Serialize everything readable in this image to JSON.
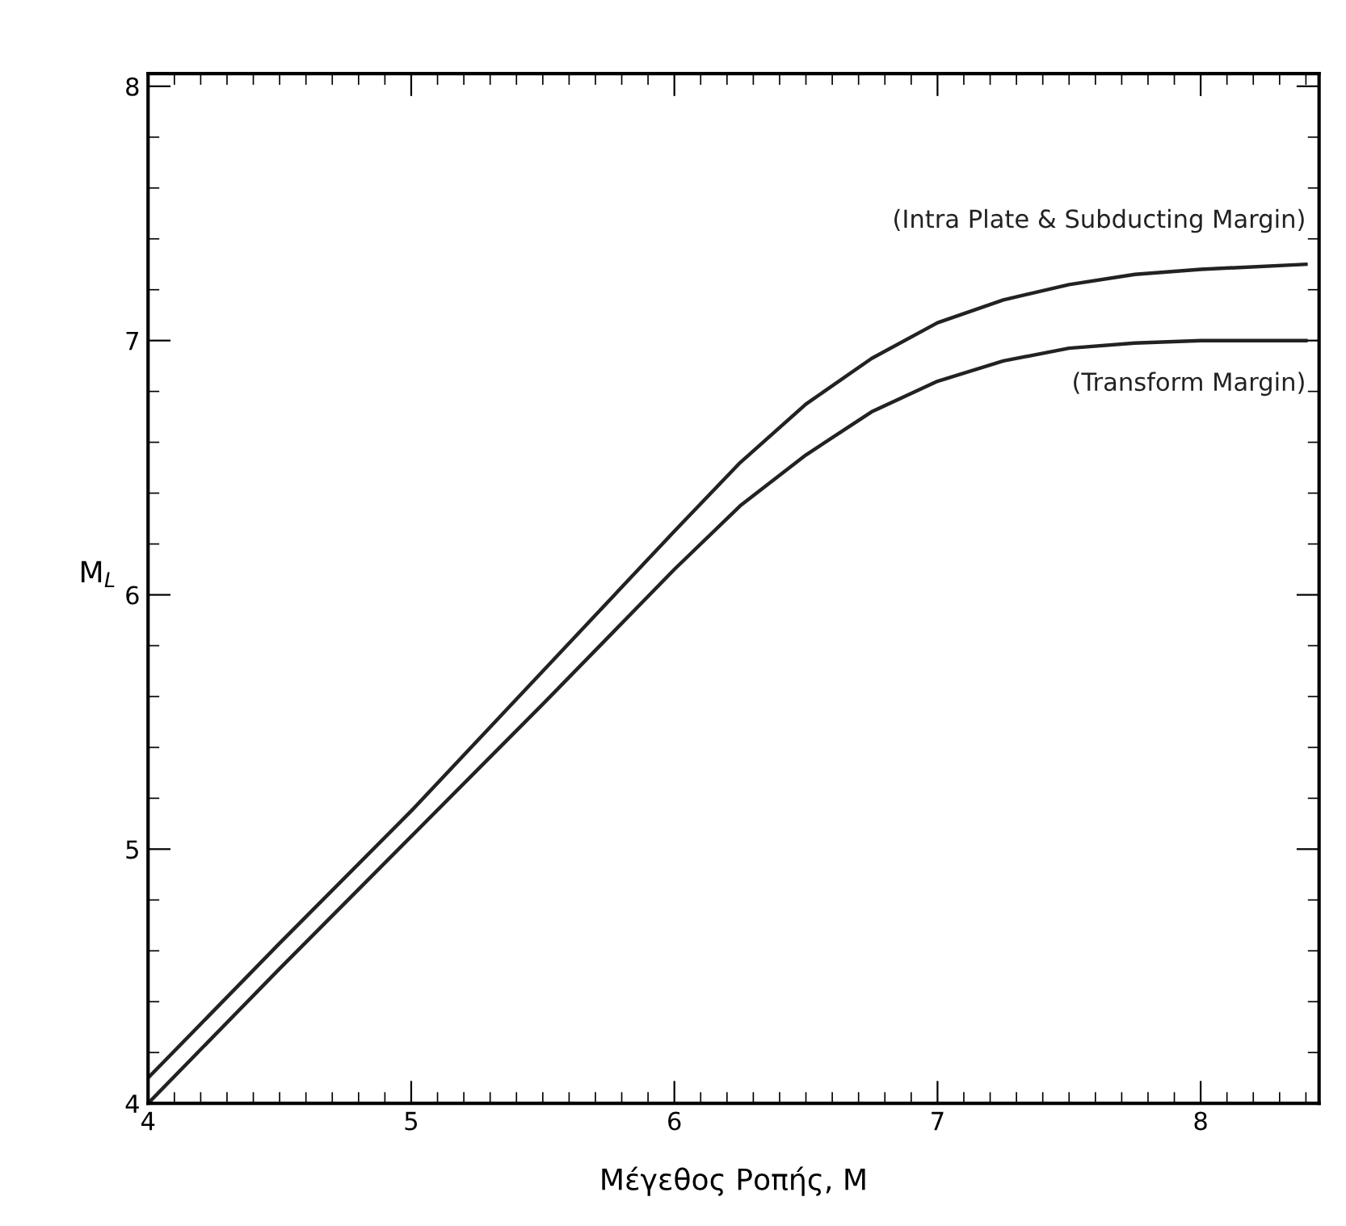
{
  "chart_data": {
    "type": "line",
    "xlabel": "Μέγεθος Ροπής, M",
    "ylabel": "M$_{L}$",
    "x": [
      4,
      4.5,
      5,
      5.5,
      6,
      6.25,
      6.5,
      6.75,
      7,
      7.25,
      7.5,
      7.75,
      8,
      8.4
    ],
    "series": [
      {
        "name": "(Intra Plate & Subducting Margin)",
        "color": "#222222",
        "values": [
          4.1,
          4.63,
          5.15,
          5.7,
          6.25,
          6.52,
          6.75,
          6.93,
          7.07,
          7.16,
          7.22,
          7.26,
          7.28,
          7.3
        ]
      },
      {
        "name": "(Transform Margin)",
        "color": "#222222",
        "values": [
          4.0,
          4.53,
          5.05,
          5.57,
          6.1,
          6.35,
          6.55,
          6.72,
          6.84,
          6.92,
          6.97,
          6.99,
          7.0,
          7.0
        ]
      }
    ],
    "xlim": [
      4,
      8.45
    ],
    "ylim": [
      4,
      8.05
    ],
    "xticks": [
      4,
      5,
      6,
      7,
      8
    ],
    "yticks": [
      4,
      5,
      6,
      7,
      8
    ],
    "grid": false,
    "legend": false,
    "marker": "none",
    "line_style": "solid"
  }
}
